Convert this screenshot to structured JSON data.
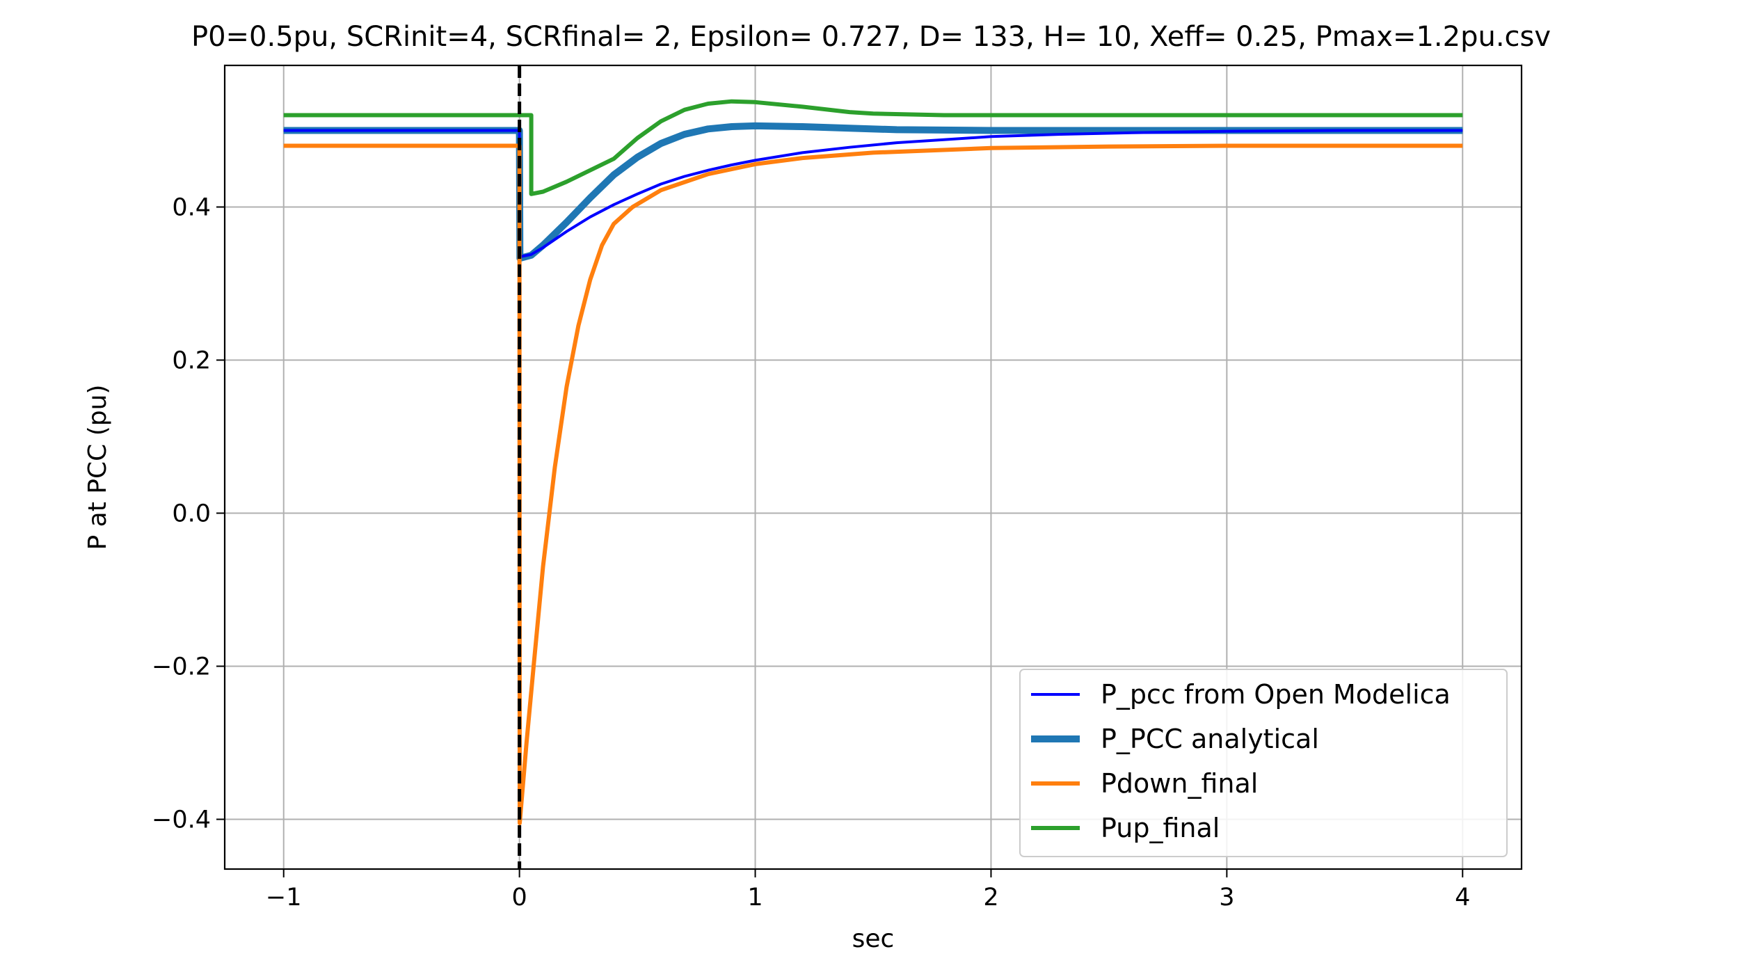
{
  "chart_data": {
    "type": "line",
    "title": "P0=0.5pu, SCRinit=4, SCRfinal= 2, Epsilon= 0.727, D= 133, H= 10, Xeff= 0.25, Pmax=1.2pu.csv",
    "xlabel": "sec",
    "ylabel": "P at PCC (pu)",
    "xlim": [
      -1.25,
      4.25
    ],
    "ylim": [
      -0.465,
      0.585
    ],
    "grid": true,
    "legend_position": "lower-right",
    "x_ticks": [
      {
        "value": -1,
        "label": "−1"
      },
      {
        "value": 0,
        "label": "0"
      },
      {
        "value": 1,
        "label": "1"
      },
      {
        "value": 2,
        "label": "2"
      },
      {
        "value": 3,
        "label": "3"
      },
      {
        "value": 4,
        "label": "4"
      }
    ],
    "y_ticks": [
      {
        "value": -0.4,
        "label": "−0.4"
      },
      {
        "value": -0.2,
        "label": "−0.2"
      },
      {
        "value": 0.0,
        "label": "0.0"
      },
      {
        "value": 0.2,
        "label": "0.2"
      },
      {
        "value": 0.4,
        "label": "0.4"
      }
    ],
    "vertical_line": {
      "x": 0,
      "style": "dashed",
      "color": "#000000"
    },
    "series": [
      {
        "name": "P_pcc from Open Modelica",
        "color": "#0000ff",
        "width": "thin",
        "points": [
          [
            -1,
            0.5
          ],
          [
            0,
            0.5
          ],
          [
            0.002,
            0.335
          ],
          [
            0.05,
            0.338
          ],
          [
            0.1,
            0.347
          ],
          [
            0.2,
            0.368
          ],
          [
            0.3,
            0.387
          ],
          [
            0.4,
            0.403
          ],
          [
            0.5,
            0.417
          ],
          [
            0.6,
            0.43
          ],
          [
            0.7,
            0.44
          ],
          [
            0.8,
            0.448
          ],
          [
            0.9,
            0.455
          ],
          [
            1.0,
            0.461
          ],
          [
            1.2,
            0.471
          ],
          [
            1.4,
            0.478
          ],
          [
            1.6,
            0.484
          ],
          [
            1.8,
            0.488
          ],
          [
            2.0,
            0.492
          ],
          [
            2.3,
            0.495
          ],
          [
            2.6,
            0.497
          ],
          [
            3.0,
            0.499
          ],
          [
            3.5,
            0.5
          ],
          [
            4.0,
            0.5
          ]
        ]
      },
      {
        "name": "P_PCC analytical",
        "color": "#1f77b4",
        "width": "thick",
        "points": [
          [
            -1,
            0.5
          ],
          [
            0,
            0.5
          ],
          [
            0.002,
            0.333
          ],
          [
            0.05,
            0.337
          ],
          [
            0.1,
            0.35
          ],
          [
            0.2,
            0.38
          ],
          [
            0.3,
            0.412
          ],
          [
            0.4,
            0.442
          ],
          [
            0.5,
            0.465
          ],
          [
            0.6,
            0.483
          ],
          [
            0.7,
            0.495
          ],
          [
            0.8,
            0.502
          ],
          [
            0.9,
            0.505
          ],
          [
            1.0,
            0.506
          ],
          [
            1.2,
            0.505
          ],
          [
            1.4,
            0.503
          ],
          [
            1.6,
            0.501
          ],
          [
            2.0,
            0.5
          ],
          [
            4.0,
            0.5
          ]
        ]
      },
      {
        "name": "Pdown_final",
        "color": "#ff7f0e",
        "width": "medium",
        "points": [
          [
            -1,
            0.48
          ],
          [
            0,
            0.48
          ],
          [
            0.001,
            -0.405
          ],
          [
            0.03,
            -0.3
          ],
          [
            0.06,
            -0.2
          ],
          [
            0.1,
            -0.07
          ],
          [
            0.15,
            0.06
          ],
          [
            0.2,
            0.165
          ],
          [
            0.25,
            0.245
          ],
          [
            0.3,
            0.305
          ],
          [
            0.35,
            0.35
          ],
          [
            0.4,
            0.378
          ],
          [
            0.48,
            0.4
          ],
          [
            0.6,
            0.422
          ],
          [
            0.8,
            0.443
          ],
          [
            1.0,
            0.456
          ],
          [
            1.2,
            0.464
          ],
          [
            1.5,
            0.471
          ],
          [
            2.0,
            0.477
          ],
          [
            2.5,
            0.479
          ],
          [
            3.0,
            0.48
          ],
          [
            4.0,
            0.48
          ]
        ]
      },
      {
        "name": "Pup_final",
        "color": "#2ca02c",
        "width": "medium",
        "points": [
          [
            -1,
            0.52
          ],
          [
            0.05,
            0.52
          ],
          [
            0.05,
            0.417
          ],
          [
            0.1,
            0.42
          ],
          [
            0.2,
            0.433
          ],
          [
            0.3,
            0.448
          ],
          [
            0.4,
            0.463
          ],
          [
            0.5,
            0.49
          ],
          [
            0.6,
            0.512
          ],
          [
            0.7,
            0.527
          ],
          [
            0.8,
            0.535
          ],
          [
            0.9,
            0.538
          ],
          [
            1.0,
            0.537
          ],
          [
            1.2,
            0.531
          ],
          [
            1.4,
            0.524
          ],
          [
            1.5,
            0.522
          ],
          [
            1.8,
            0.52
          ],
          [
            2.7,
            0.52
          ],
          [
            4.0,
            0.52
          ]
        ]
      }
    ]
  }
}
